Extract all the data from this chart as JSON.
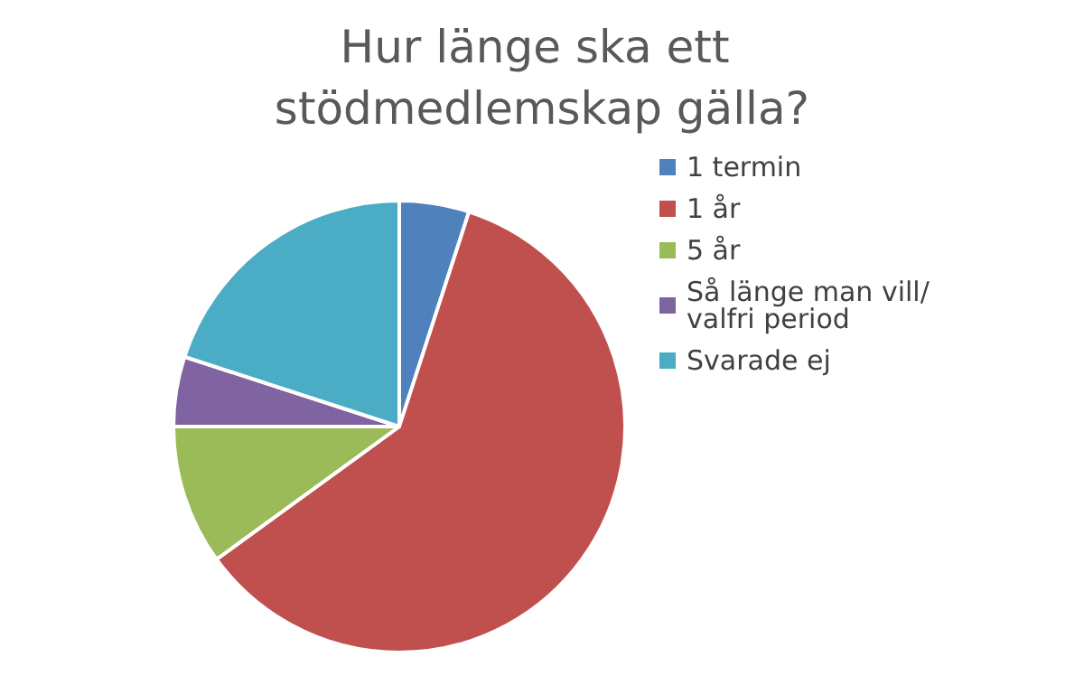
{
  "chart_data": {
    "type": "pie",
    "title": "Hur länge ska ett stödmedlemskap gälla?",
    "categories": [
      "1 termin",
      "1 år",
      "5 år",
      "Så länge man vill/valfri period",
      "Svarade ej"
    ],
    "values": [
      5,
      60,
      10,
      5,
      20
    ],
    "colors": [
      "#4f81bd",
      "#c0504d",
      "#9bbb59",
      "#8064a2",
      "#4bacc6"
    ],
    "legend": "right"
  }
}
